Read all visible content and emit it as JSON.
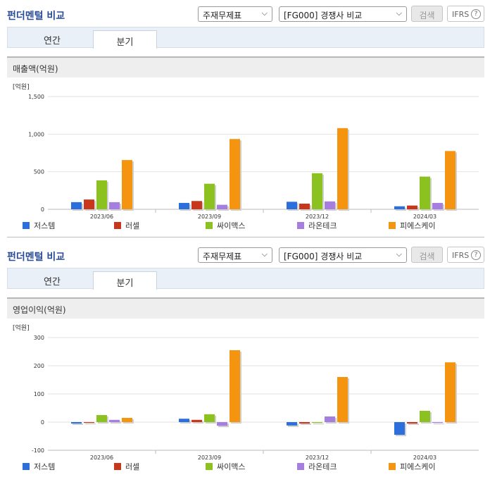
{
  "panels": [
    {
      "title": "펀더멘털 비교",
      "select1": "주재무제표",
      "select2": "[FG000] 경쟁사 비교",
      "search_label": "검색",
      "ifrs_label": "IFRS",
      "help_icon": "question-circle-icon",
      "tabs": [
        "연간",
        "분기"
      ],
      "active_tab": "분기",
      "section_title": "매출액(억원)"
    },
    {
      "title": "펀더멘털 비교",
      "select1": "주재무제표",
      "select2": "[FG000] 경쟁사 비교",
      "search_label": "검색",
      "ifrs_label": "IFRS",
      "help_icon": "question-circle-icon",
      "tabs": [
        "연간",
        "분기"
      ],
      "active_tab": "분기",
      "section_title": "영업이익(억원)"
    }
  ],
  "chart_data": [
    {
      "type": "bar",
      "unit_label": "[억원]",
      "categories": [
        "2023/06",
        "2023/09",
        "2023/12",
        "2024/03"
      ],
      "ylim": [
        0,
        1500
      ],
      "yticks": [
        0,
        500,
        1000,
        1500
      ],
      "ytick_labels": [
        "0",
        "500",
        "1,000",
        "1,500"
      ],
      "grid": true,
      "legend_position": "bottom",
      "series": [
        {
          "name": "저스템",
          "color": "#2a6fdb",
          "values": [
            95,
            85,
            100,
            40
          ]
        },
        {
          "name": "러셀",
          "color": "#c8361b",
          "values": [
            130,
            110,
            75,
            50
          ]
        },
        {
          "name": "싸이맥스",
          "color": "#8cc21f",
          "values": [
            385,
            340,
            480,
            435
          ]
        },
        {
          "name": "라온테크",
          "color": "#a57ee0",
          "values": [
            95,
            60,
            105,
            85
          ]
        },
        {
          "name": "피에스케이",
          "color": "#f5940f",
          "values": [
            655,
            935,
            1080,
            775
          ]
        }
      ]
    },
    {
      "type": "bar",
      "unit_label": "[억원]",
      "categories": [
        "2023/06",
        "2023/09",
        "2023/12",
        "2024/03"
      ],
      "ylim": [
        -100,
        300
      ],
      "yticks": [
        -100,
        0,
        100,
        200,
        300
      ],
      "ytick_labels": [
        "-100",
        "0",
        "100",
        "200",
        "300"
      ],
      "grid": true,
      "legend_position": "bottom",
      "series": [
        {
          "name": "저스템",
          "color": "#2a6fdb",
          "values": [
            -5,
            12,
            -12,
            -45
          ]
        },
        {
          "name": "러셀",
          "color": "#c8361b",
          "values": [
            -3,
            8,
            -5,
            -5
          ]
        },
        {
          "name": "싸이맥스",
          "color": "#8cc21f",
          "values": [
            25,
            28,
            -3,
            40
          ]
        },
        {
          "name": "라온테크",
          "color": "#a57ee0",
          "values": [
            8,
            -13,
            20,
            -3
          ]
        },
        {
          "name": "피에스케이",
          "color": "#f5940f",
          "values": [
            15,
            255,
            160,
            212
          ]
        }
      ]
    }
  ]
}
